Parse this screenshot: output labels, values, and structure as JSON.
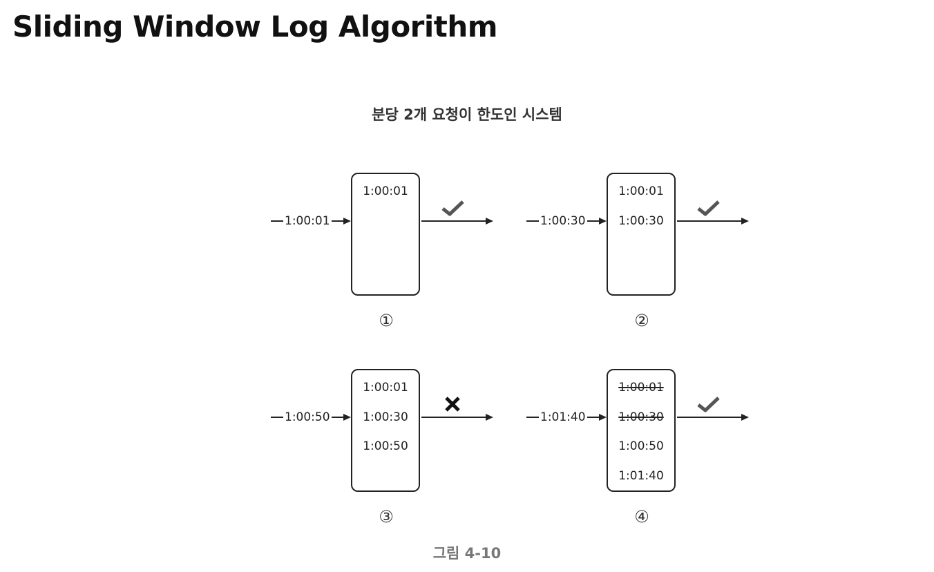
{
  "title": "Sliding Window Log Algorithm",
  "diagram": {
    "heading": "분당 2개 요청이 한도인 시스템",
    "caption": "그림 4-10",
    "panels": [
      {
        "step": "①",
        "incoming": "1:00:01",
        "log": [
          {
            "time": "1:00:01",
            "struck": false
          }
        ],
        "result": "accepted",
        "result_icon": "checkmark-icon"
      },
      {
        "step": "②",
        "incoming": "1:00:30",
        "log": [
          {
            "time": "1:00:01",
            "struck": false
          },
          {
            "time": "1:00:30",
            "struck": false
          }
        ],
        "result": "accepted",
        "result_icon": "checkmark-icon"
      },
      {
        "step": "③",
        "incoming": "1:00:50",
        "log": [
          {
            "time": "1:00:01",
            "struck": false
          },
          {
            "time": "1:00:30",
            "struck": false
          },
          {
            "time": "1:00:50",
            "struck": false
          }
        ],
        "result": "rejected",
        "result_icon": "x-mark-icon"
      },
      {
        "step": "④",
        "incoming": "1:01:40",
        "log": [
          {
            "time": "1:00:01",
            "struck": true
          },
          {
            "time": "1:00:30",
            "struck": true
          },
          {
            "time": "1:00:50",
            "struck": false
          },
          {
            "time": "1:01:40",
            "struck": false
          }
        ],
        "result": "accepted",
        "result_icon": "checkmark-icon"
      }
    ],
    "colors": {
      "line": "#222222",
      "accept": "#555555",
      "reject": "#111111"
    }
  }
}
